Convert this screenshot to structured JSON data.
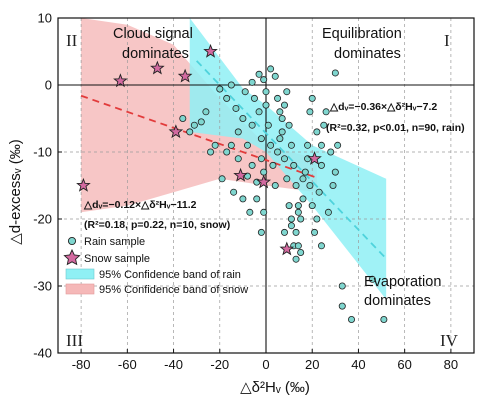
{
  "chart_data": {
    "type": "scatter",
    "xlabel": "△δ²Hᵥ (‰)",
    "ylabel": "△d-excessᵥ (‰)",
    "xlim": [
      -90,
      90
    ],
    "ylim": [
      -40,
      10
    ],
    "xticks": [
      -80,
      -60,
      -40,
      -20,
      0,
      20,
      40,
      60,
      80
    ],
    "yticks": [
      10,
      0,
      -10,
      -20,
      -30,
      -40
    ],
    "grid": true,
    "quadrant_labels": [
      "II",
      "I",
      "III",
      "IV"
    ],
    "region_labels": {
      "cloud": [
        "Cloud signal",
        "dominates"
      ],
      "equilibration": [
        "Equilibration",
        "dominates"
      ],
      "evaporation": [
        "Evaporation",
        "dominates"
      ]
    },
    "equations": {
      "rain_line1": "△dᵥ=−0.36×△δ²Hᵥ−7.2",
      "rain_line2": "(R²=0.32, p<0.01, n=90, rain)",
      "snow_line1": "△dᵥ=−0.12×△δ²Hᵥ−11.2",
      "snow_line2": "(R²=0.18, p=0.22, n=10, snow)"
    },
    "legend": {
      "placement": "bottom-left",
      "entries": [
        "Rain sample",
        "Snow sample",
        "95% Confidence band of rain",
        "95% Confidence band of snow"
      ]
    },
    "series": [
      {
        "name": "Rain sample",
        "color": "#7fd6cf",
        "points": [
          [
            -20,
            -0.6
          ],
          [
            -13,
            -3.5
          ],
          [
            -10,
            -5
          ],
          [
            -12,
            -7
          ],
          [
            -8,
            -9
          ],
          [
            -6,
            -6
          ],
          [
            -5,
            -2
          ],
          [
            -3,
            -4
          ],
          [
            -2,
            -8
          ],
          [
            -2,
            -11
          ],
          [
            -1,
            -13
          ],
          [
            -4,
            -14.5
          ],
          [
            -6,
            -12
          ],
          [
            -8,
            -13.6
          ],
          [
            -12,
            -11
          ],
          [
            -15,
            -9
          ],
          [
            -17,
            -10
          ],
          [
            -19,
            -14
          ],
          [
            -22,
            -9
          ],
          [
            -24,
            -10
          ],
          [
            -26,
            -4
          ],
          [
            -28,
            -5.5
          ],
          [
            -31,
            -6
          ],
          [
            -33,
            -7
          ],
          [
            -36,
            -5
          ],
          [
            -14,
            -16
          ],
          [
            -10,
            -17
          ],
          [
            -7,
            -19
          ],
          [
            -4,
            -17
          ],
          [
            -2,
            -22
          ],
          [
            0,
            -3
          ],
          [
            1,
            -6
          ],
          [
            2,
            -9
          ],
          [
            3,
            -12
          ],
          [
            4,
            -15
          ],
          [
            5,
            -10
          ],
          [
            6,
            -8
          ],
          [
            7,
            -5
          ],
          [
            8,
            -3
          ],
          [
            9,
            -1
          ],
          [
            10,
            -6
          ],
          [
            11,
            -9
          ],
          [
            12,
            -12
          ],
          [
            13,
            -15
          ],
          [
            14,
            -18
          ],
          [
            15,
            -20
          ],
          [
            16,
            -17
          ],
          [
            17,
            -13
          ],
          [
            18,
            -11
          ],
          [
            19,
            -15
          ],
          [
            20,
            -18
          ],
          [
            21,
            -22
          ],
          [
            22,
            -20
          ],
          [
            23,
            -16
          ],
          [
            24,
            -12
          ],
          [
            0,
            -1
          ],
          [
            2,
            2.4
          ],
          [
            4,
            1.3
          ],
          [
            5,
            -2
          ],
          [
            6,
            -4
          ],
          [
            7,
            -7
          ],
          [
            8,
            -11
          ],
          [
            9,
            -14
          ],
          [
            10,
            -18
          ],
          [
            11,
            -21
          ],
          [
            12,
            -24
          ],
          [
            13,
            -22
          ],
          [
            14,
            -19
          ],
          [
            16,
            -14
          ],
          [
            18,
            -9
          ],
          [
            19,
            -4
          ],
          [
            20,
            -2
          ],
          [
            22,
            -7
          ],
          [
            24,
            -9
          ],
          [
            25,
            -6
          ],
          [
            26,
            -4
          ],
          [
            28,
            -10
          ],
          [
            29,
            -15
          ],
          [
            30,
            -13
          ],
          [
            31,
            -9
          ],
          [
            -15,
            0
          ],
          [
            -17,
            -2
          ],
          [
            -9,
            -1
          ],
          [
            -6,
            0.4
          ],
          [
            -3,
            1.6
          ],
          [
            -1,
            0.8
          ],
          [
            30,
            1.8
          ],
          [
            33,
            -30
          ],
          [
            37,
            -35
          ],
          [
            46,
            -29
          ],
          [
            51,
            -35
          ],
          [
            33,
            -33
          ],
          [
            13,
            -26
          ],
          [
            14,
            -24
          ],
          [
            15,
            -25
          ],
          [
            24,
            -24
          ],
          [
            27,
            -19
          ],
          [
            11,
            -20
          ],
          [
            8,
            -22
          ],
          [
            -1,
            -19
          ]
        ]
      },
      {
        "name": "Snow sample",
        "color": "#d36aa0",
        "points": [
          [
            -79,
            -15
          ],
          [
            -63,
            0.6
          ],
          [
            -47,
            2.5
          ],
          [
            -39,
            -7
          ],
          [
            -35,
            1.3
          ],
          [
            -24,
            5
          ],
          [
            -11,
            -13.5
          ],
          [
            -1,
            -14.5
          ],
          [
            9,
            -24.5
          ],
          [
            21,
            -11
          ]
        ]
      }
    ],
    "fit_lines": [
      {
        "name": "rain",
        "slope": -0.36,
        "intercept": -7.2,
        "x_range": [
          -30,
          52
        ],
        "color": "#4fd3dc"
      },
      {
        "name": "snow",
        "slope": -0.12,
        "intercept": -11.2,
        "x_range": [
          -80,
          22
        ],
        "color": "#e23b3b"
      }
    ],
    "confidence_bands": [
      {
        "name": "95% Confidence band of rain",
        "color": "#8ff0f4",
        "upper": [
          [
            -33,
            10
          ],
          [
            -10,
            -0.5
          ],
          [
            0,
            -3
          ],
          [
            20,
            -9
          ],
          [
            52,
            -14
          ]
        ],
        "lower": [
          [
            -33,
            -7
          ],
          [
            -10,
            -8
          ],
          [
            0,
            -10
          ],
          [
            20,
            -18
          ],
          [
            52,
            -32
          ]
        ]
      },
      {
        "name": "95% Confidence band of snow",
        "color": "#f5b8b8",
        "upper": [
          [
            -80,
            10
          ],
          [
            -60,
            9
          ],
          [
            -40,
            6
          ],
          [
            -20,
            -2
          ],
          [
            0,
            -9
          ],
          [
            22,
            -11
          ]
        ],
        "lower": [
          [
            -80,
            -19
          ],
          [
            -60,
            -18
          ],
          [
            -40,
            -16
          ],
          [
            -20,
            -14
          ],
          [
            0,
            -15
          ],
          [
            22,
            -16
          ]
        ]
      }
    ]
  }
}
